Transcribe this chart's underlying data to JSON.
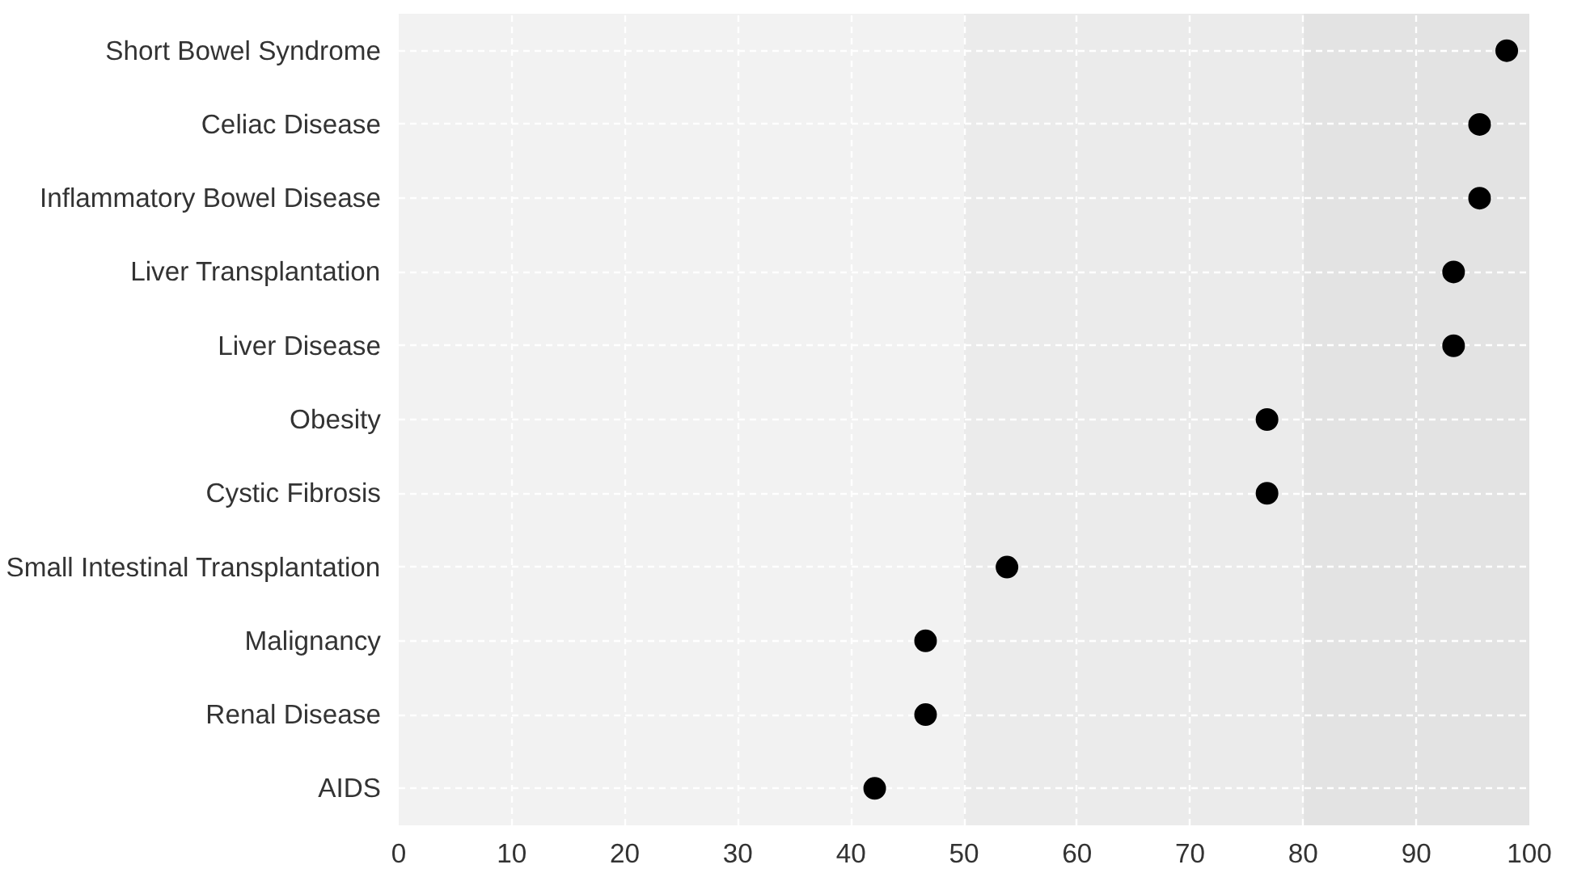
{
  "chart_data": {
    "type": "scatter",
    "orientation": "horizontal",
    "categories": [
      "Short Bowel Syndrome",
      "Celiac Disease",
      "Inflammatory Bowel Disease",
      "Liver Transplantation",
      "Liver Disease",
      "Obesity",
      "Cystic Fibrosis",
      "Small Intestinal Transplantation",
      "Malignancy",
      "Renal Disease",
      "AIDS"
    ],
    "values": [
      98,
      95.6,
      95.6,
      93.3,
      93.3,
      76.8,
      76.8,
      53.8,
      46.6,
      46.6,
      42.1
    ],
    "color": "#000000",
    "marker": "circle",
    "xlim": [
      0,
      100
    ],
    "xticks": [
      0,
      10,
      20,
      30,
      40,
      50,
      60,
      70,
      80,
      90,
      100
    ],
    "grid": true,
    "bands": [
      {
        "axis": "x",
        "from": 0,
        "to": 50,
        "color": "#f2f2f2"
      },
      {
        "axis": "x",
        "from": 50,
        "to": 80,
        "color": "#ebebeb"
      },
      {
        "axis": "x",
        "from": 80,
        "to": 100,
        "color": "#e3e3e3"
      }
    ]
  }
}
